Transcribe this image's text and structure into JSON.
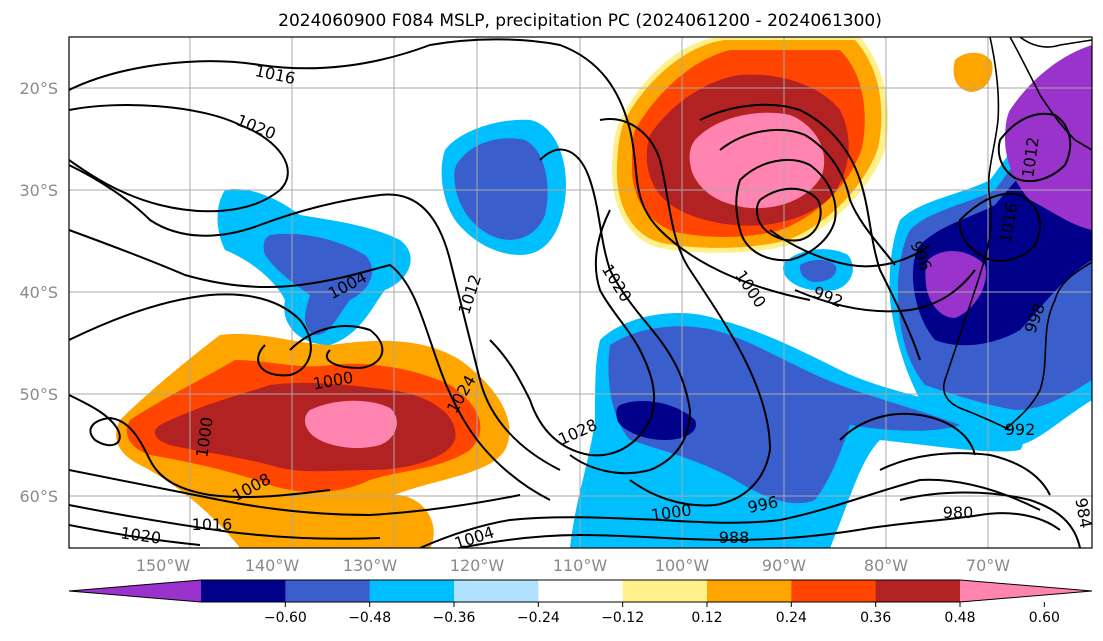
{
  "title": "2024060900 F084 MSLP, precipitation PC (2024061200 - 2024061300)",
  "latitude_labels": [
    "20°S",
    "30°S",
    "40°S",
    "50°S",
    "60°S"
  ],
  "longitude_labels": [
    "150°W",
    "140°W",
    "130°W",
    "120°W",
    "110°W",
    "100°W",
    "90°W",
    "80°W",
    "70°W"
  ],
  "colorbar": {
    "ticks": [
      "−0.60",
      "−0.48",
      "−0.36",
      "−0.24",
      "−0.12",
      "0.12",
      "0.24",
      "0.36",
      "0.48",
      "0.60"
    ],
    "colors": [
      "#9933cc",
      "#00008b",
      "#3a5fcd",
      "#00bfff",
      "#b0e2ff",
      "#ffffff",
      "#fff08a",
      "#ffa500",
      "#ff4500",
      "#b22222",
      "#ff85b0"
    ],
    "extend": "both"
  },
  "isobar_labels": [
    "1016",
    "1020",
    "1004",
    "1012",
    "1020",
    "1000",
    "992",
    "996",
    "1012",
    "1016",
    "1000",
    "1024",
    "1000",
    "1008",
    "1016",
    "1020",
    "1028",
    "1004",
    "1000",
    "996",
    "988",
    "980",
    "992",
    "984",
    "998"
  ]
}
